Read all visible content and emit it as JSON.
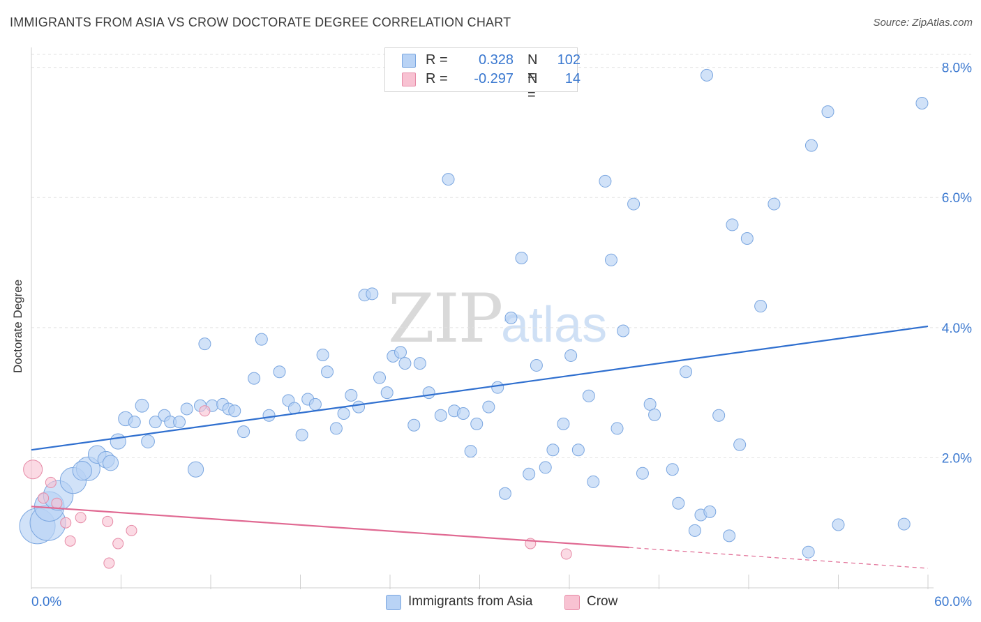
{
  "title": "IMMIGRANTS FROM ASIA VS CROW DOCTORATE DEGREE CORRELATION CHART",
  "source": "Source: ZipAtlas.com",
  "watermark": {
    "zip": "ZIP",
    "atlas": "atlas"
  },
  "legend": {
    "r_label": "R =",
    "n_label": "N =",
    "series": [
      {
        "r": "0.328",
        "n": "102",
        "fill": "#b9d3f5",
        "stroke": "#7aa6e0"
      },
      {
        "r": "-0.297",
        "n": "14",
        "fill": "#f8c2d2",
        "stroke": "#e68aa6"
      }
    ]
  },
  "bottom_legend": [
    {
      "label": "Immigrants from Asia",
      "fill": "#b9d3f5",
      "stroke": "#7aa6e0"
    },
    {
      "label": "Crow",
      "fill": "#f8c2d2",
      "stroke": "#e68aa6"
    }
  ],
  "chart_data": {
    "type": "scatter",
    "title": "IMMIGRANTS FROM ASIA VS CROW DOCTORATE DEGREE CORRELATION CHART",
    "xlabel": "",
    "ylabel": "Doctorate Degree",
    "xlim": [
      0,
      60
    ],
    "ylim": [
      0,
      8.2
    ],
    "x_tick_labels": [
      "0.0%",
      "60.0%"
    ],
    "y_ticks": [
      2,
      4,
      6,
      8
    ],
    "y_tick_labels": [
      "2.0%",
      "4.0%",
      "6.0%",
      "8.0%"
    ],
    "grid": "horizontal dashed",
    "legend_position": "top-center",
    "colors": {
      "asia": "#5b8fd9",
      "asia_line": "#2f6fcf",
      "crow": "#f0a3ba",
      "crow_line": "#e06992"
    },
    "series": [
      {
        "name": "Immigrants from Asia",
        "r": 0.328,
        "n": 102,
        "trend": {
          "x": [
            0,
            60
          ],
          "y": [
            2.12,
            4.02
          ]
        },
        "points": [
          [
            0.4,
            0.95,
            3
          ],
          [
            1.1,
            1.0,
            3
          ],
          [
            1.2,
            1.25,
            2.5
          ],
          [
            1.8,
            1.42,
            2.5
          ],
          [
            2.8,
            1.65,
            2.2
          ],
          [
            3.8,
            1.83,
            2
          ],
          [
            3.4,
            1.8,
            1.6
          ],
          [
            4.4,
            2.05,
            1.5
          ],
          [
            5.0,
            1.97,
            1.4
          ],
          [
            5.3,
            1.92,
            1.3
          ],
          [
            5.8,
            2.25,
            1.3
          ],
          [
            6.3,
            2.6,
            1.2
          ],
          [
            6.9,
            2.55,
            1
          ],
          [
            7.4,
            2.8,
            1.1
          ],
          [
            7.8,
            2.25,
            1.1
          ],
          [
            8.3,
            2.55,
            1
          ],
          [
            8.9,
            2.65,
            1
          ],
          [
            9.3,
            2.55,
            1
          ],
          [
            9.9,
            2.55,
            1
          ],
          [
            10.4,
            2.75,
            1
          ],
          [
            11.0,
            1.82,
            1.3
          ],
          [
            11.3,
            2.8,
            1
          ],
          [
            11.6,
            3.75,
            1
          ],
          [
            12.1,
            2.8,
            1
          ],
          [
            12.8,
            2.82,
            1
          ],
          [
            13.2,
            2.75,
            1
          ],
          [
            13.6,
            2.72,
            1
          ],
          [
            14.2,
            2.4,
            1
          ],
          [
            14.9,
            3.22,
            1
          ],
          [
            15.4,
            3.82,
            1
          ],
          [
            15.9,
            2.65,
            1
          ],
          [
            16.6,
            3.32,
            1
          ],
          [
            17.2,
            2.88,
            1
          ],
          [
            17.6,
            2.76,
            1
          ],
          [
            18.1,
            2.35,
            1
          ],
          [
            18.5,
            2.9,
            1
          ],
          [
            19.0,
            2.82,
            1
          ],
          [
            19.5,
            3.58,
            1
          ],
          [
            19.8,
            3.32,
            1
          ],
          [
            20.4,
            2.45,
            1
          ],
          [
            20.9,
            2.68,
            1
          ],
          [
            21.4,
            2.96,
            1
          ],
          [
            21.9,
            2.78,
            1
          ],
          [
            22.3,
            4.5,
            1
          ],
          [
            22.8,
            4.52,
            1
          ],
          [
            23.3,
            3.23,
            1
          ],
          [
            23.8,
            3.0,
            1
          ],
          [
            24.2,
            3.56,
            1
          ],
          [
            24.7,
            3.62,
            1
          ],
          [
            25.0,
            3.45,
            1
          ],
          [
            25.6,
            2.5,
            1
          ],
          [
            26.0,
            3.45,
            1
          ],
          [
            26.6,
            3.0,
            1
          ],
          [
            27.4,
            2.65,
            1
          ],
          [
            27.9,
            6.28,
            1
          ],
          [
            28.3,
            2.72,
            1
          ],
          [
            28.9,
            2.68,
            1
          ],
          [
            29.4,
            2.1,
            1
          ],
          [
            29.8,
            2.52,
            1
          ],
          [
            30.6,
            2.78,
            1
          ],
          [
            31.2,
            3.08,
            1
          ],
          [
            31.7,
            1.45,
            1
          ],
          [
            32.1,
            4.15,
            1
          ],
          [
            32.8,
            5.07,
            1
          ],
          [
            33.3,
            1.75,
            1
          ],
          [
            33.8,
            3.42,
            1
          ],
          [
            34.4,
            1.85,
            1
          ],
          [
            34.9,
            2.12,
            1
          ],
          [
            35.6,
            2.52,
            1
          ],
          [
            36.1,
            3.57,
            1
          ],
          [
            36.6,
            2.12,
            1
          ],
          [
            37.3,
            2.95,
            1
          ],
          [
            37.6,
            1.63,
            1
          ],
          [
            38.4,
            6.25,
            1
          ],
          [
            38.8,
            5.04,
            1
          ],
          [
            39.2,
            2.45,
            1
          ],
          [
            39.6,
            3.95,
            1
          ],
          [
            40.3,
            5.9,
            1
          ],
          [
            40.9,
            1.76,
            1
          ],
          [
            41.4,
            2.82,
            1
          ],
          [
            41.7,
            2.66,
            1
          ],
          [
            42.9,
            1.82,
            1
          ],
          [
            43.3,
            1.3,
            1
          ],
          [
            43.8,
            3.32,
            1
          ],
          [
            44.4,
            0.88,
            1
          ],
          [
            44.8,
            1.12,
            1
          ],
          [
            45.4,
            1.17,
            1
          ],
          [
            45.2,
            7.88,
            1
          ],
          [
            46.0,
            2.65,
            1
          ],
          [
            46.7,
            0.8,
            1
          ],
          [
            46.9,
            5.58,
            1
          ],
          [
            47.4,
            2.2,
            1
          ],
          [
            47.9,
            5.37,
            1
          ],
          [
            48.8,
            4.33,
            1
          ],
          [
            49.7,
            5.9,
            1
          ],
          [
            52.0,
            0.55,
            1
          ],
          [
            52.2,
            6.8,
            1
          ],
          [
            53.3,
            7.32,
            1
          ],
          [
            54.0,
            0.97,
            1
          ],
          [
            58.4,
            0.98,
            1
          ],
          [
            59.6,
            7.45,
            1
          ]
        ]
      },
      {
        "name": "Crow",
        "r": -0.297,
        "n": 14,
        "trend": {
          "x": [
            0,
            40
          ],
          "y": [
            1.25,
            0.62
          ]
        },
        "trend_dashed": {
          "x": [
            40,
            60
          ],
          "y": [
            0.62,
            0.3
          ]
        },
        "points": [
          [
            0.1,
            1.82,
            1.8
          ],
          [
            0.8,
            1.38,
            1
          ],
          [
            1.3,
            1.62,
            1
          ],
          [
            1.7,
            1.3,
            1
          ],
          [
            2.3,
            1.0,
            1
          ],
          [
            2.6,
            0.72,
            1
          ],
          [
            3.3,
            1.08,
            1
          ],
          [
            5.1,
            1.02,
            1
          ],
          [
            5.2,
            0.38,
            1
          ],
          [
            5.8,
            0.68,
            1
          ],
          [
            6.7,
            0.88,
            1
          ],
          [
            11.6,
            2.72,
            1
          ],
          [
            33.4,
            0.68,
            1
          ],
          [
            35.8,
            0.52,
            1
          ]
        ]
      }
    ]
  }
}
